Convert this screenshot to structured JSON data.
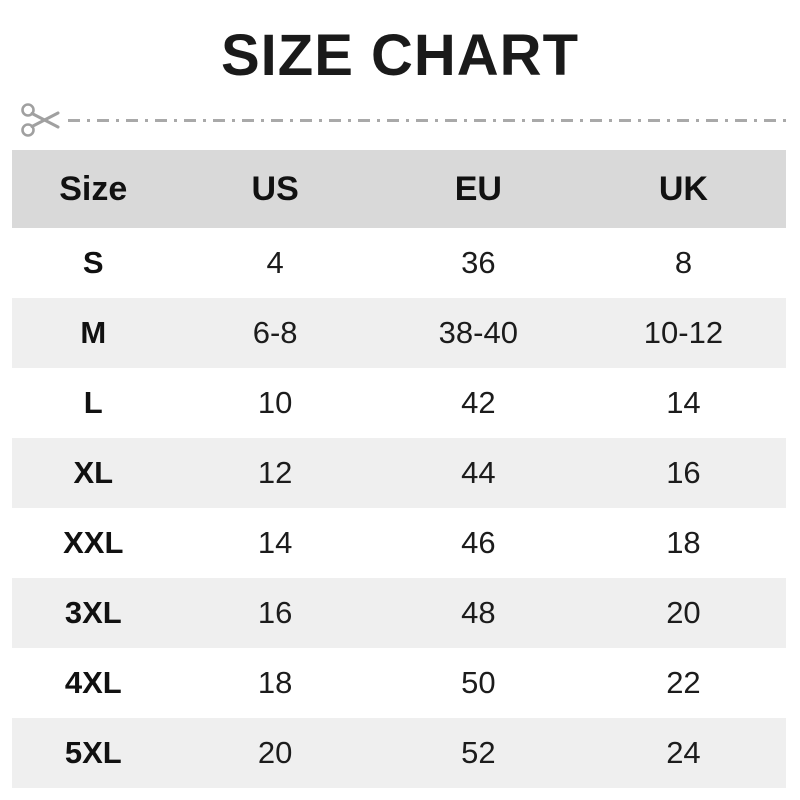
{
  "title": "SIZE CHART",
  "cut_line": {
    "icon": "scissors-icon",
    "line_color": "#a9a9a9"
  },
  "table": {
    "headers": [
      "Size",
      "US",
      "EU",
      "UK"
    ],
    "rows": [
      [
        "S",
        "4",
        "36",
        "8"
      ],
      [
        "M",
        "6-8",
        "38-40",
        "10-12"
      ],
      [
        "L",
        "10",
        "42",
        "14"
      ],
      [
        "XL",
        "12",
        "44",
        "16"
      ],
      [
        "XXL",
        "14",
        "46",
        "18"
      ],
      [
        "3XL",
        "16",
        "48",
        "20"
      ],
      [
        "4XL",
        "18",
        "50",
        "22"
      ],
      [
        "5XL",
        "20",
        "52",
        "24"
      ]
    ]
  },
  "colors": {
    "header_bg": "#d9d9d9",
    "stripe_bg": "#efefef",
    "text": "#1c1c1c",
    "title_text": "#1a1a1a",
    "cut_line": "#a9a9a9",
    "page_bg": "#ffffff"
  }
}
